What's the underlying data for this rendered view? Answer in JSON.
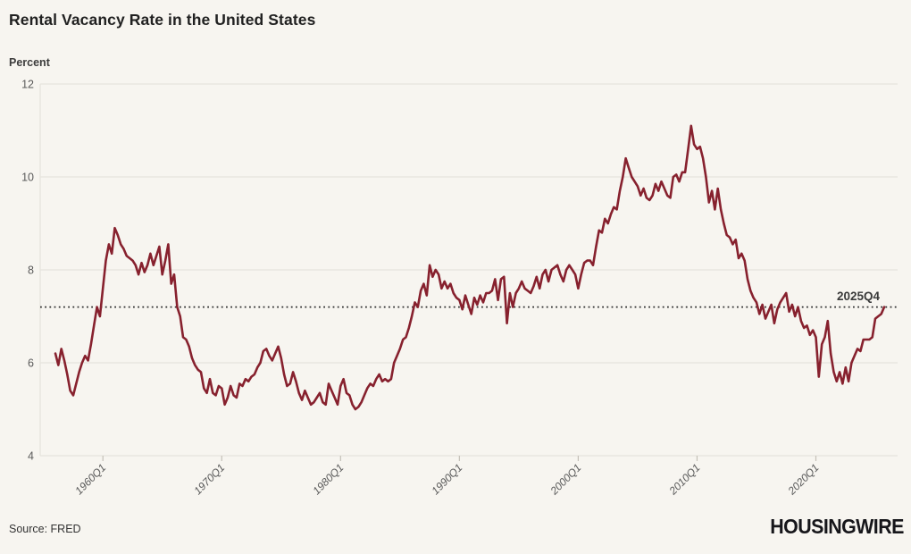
{
  "header": {
    "title": "Rental Vacancy Rate in the United States"
  },
  "footer": {
    "source": "Source: FRED",
    "logo": "HOUSINGWIRE"
  },
  "colors": {
    "background": "#f7f5f0",
    "line": "#87212e",
    "gridline": "#e6e3dc",
    "tick": "#c4c0b8",
    "axis_text": "#5a5a5a",
    "reference_line": "#2e2e2e"
  },
  "chart_data": {
    "type": "line",
    "title": "Rental Vacancy Rate in the United States",
    "xlabel": "",
    "ylabel": "Percent",
    "ylim": [
      4,
      12
    ],
    "yticks": [
      4,
      6,
      8,
      10,
      12
    ],
    "grid": true,
    "frequency": "quarterly",
    "x_start": "1956Q1",
    "x_end": "2025Q4",
    "xticks": [
      {
        "label": "1960Q1",
        "index": 16
      },
      {
        "label": "1970Q1",
        "index": 56
      },
      {
        "label": "1980Q1",
        "index": 96
      },
      {
        "label": "1990Q1",
        "index": 136
      },
      {
        "label": "2000Q1",
        "index": 176
      },
      {
        "label": "2010Q1",
        "index": 216
      },
      {
        "label": "2020Q1",
        "index": 256
      }
    ],
    "reference_line": {
      "value": 7.2,
      "label": "2025Q4"
    },
    "series": [
      {
        "name": "Rental Vacancy Rate (percent)",
        "values": [
          6.2,
          5.95,
          6.3,
          6.05,
          5.75,
          5.4,
          5.3,
          5.55,
          5.8,
          6.0,
          6.15,
          6.05,
          6.4,
          6.8,
          7.2,
          7.0,
          7.6,
          8.2,
          8.55,
          8.35,
          8.9,
          8.75,
          8.55,
          8.45,
          8.3,
          8.25,
          8.2,
          8.1,
          7.9,
          8.15,
          7.95,
          8.1,
          8.35,
          8.1,
          8.3,
          8.5,
          7.9,
          8.2,
          8.55,
          7.7,
          7.9,
          7.2,
          7.0,
          6.55,
          6.5,
          6.35,
          6.1,
          5.95,
          5.85,
          5.8,
          5.45,
          5.35,
          5.65,
          5.35,
          5.3,
          5.5,
          5.45,
          5.1,
          5.25,
          5.5,
          5.3,
          5.25,
          5.55,
          5.5,
          5.65,
          5.6,
          5.7,
          5.75,
          5.9,
          6.0,
          6.25,
          6.3,
          6.15,
          6.05,
          6.2,
          6.35,
          6.1,
          5.75,
          5.5,
          5.55,
          5.8,
          5.6,
          5.35,
          5.2,
          5.4,
          5.25,
          5.1,
          5.15,
          5.25,
          5.35,
          5.15,
          5.1,
          5.55,
          5.4,
          5.25,
          5.1,
          5.5,
          5.65,
          5.35,
          5.3,
          5.1,
          5.0,
          5.05,
          5.15,
          5.3,
          5.45,
          5.55,
          5.5,
          5.65,
          5.75,
          5.6,
          5.65,
          5.6,
          5.65,
          6.0,
          6.15,
          6.3,
          6.5,
          6.55,
          6.75,
          7.0,
          7.3,
          7.2,
          7.55,
          7.7,
          7.45,
          8.1,
          7.85,
          8.0,
          7.9,
          7.6,
          7.75,
          7.6,
          7.7,
          7.5,
          7.4,
          7.35,
          7.15,
          7.45,
          7.25,
          7.05,
          7.4,
          7.25,
          7.45,
          7.3,
          7.5,
          7.5,
          7.55,
          7.8,
          7.35,
          7.8,
          7.85,
          6.85,
          7.5,
          7.2,
          7.5,
          7.6,
          7.75,
          7.6,
          7.55,
          7.5,
          7.65,
          7.85,
          7.6,
          7.9,
          8.0,
          7.75,
          8.0,
          8.05,
          8.1,
          7.9,
          7.75,
          8.0,
          8.1,
          8.0,
          7.9,
          7.6,
          7.9,
          8.15,
          8.2,
          8.2,
          8.1,
          8.5,
          8.85,
          8.8,
          9.1,
          9.0,
          9.2,
          9.35,
          9.3,
          9.7,
          10.0,
          10.4,
          10.2,
          10.0,
          9.9,
          9.8,
          9.6,
          9.75,
          9.55,
          9.5,
          9.6,
          9.85,
          9.7,
          9.9,
          9.75,
          9.6,
          9.55,
          10.0,
          10.05,
          9.9,
          10.1,
          10.1,
          10.6,
          11.1,
          10.7,
          10.6,
          10.65,
          10.4,
          10.0,
          9.45,
          9.7,
          9.3,
          9.75,
          9.3,
          9.0,
          8.75,
          8.7,
          8.55,
          8.65,
          8.25,
          8.35,
          8.2,
          7.8,
          7.55,
          7.4,
          7.3,
          7.05,
          7.25,
          6.95,
          7.1,
          7.25,
          6.85,
          7.15,
          7.3,
          7.4,
          7.5,
          7.1,
          7.25,
          7.0,
          7.2,
          6.9,
          6.75,
          6.8,
          6.6,
          6.7,
          6.55,
          5.7,
          6.4,
          6.55,
          6.9,
          6.2,
          5.8,
          5.6,
          5.8,
          5.55,
          5.9,
          5.6,
          6.0,
          6.15,
          6.3,
          6.25,
          6.5,
          6.5,
          6.5,
          6.55,
          6.95,
          7.0,
          7.05,
          7.2
        ]
      }
    ]
  }
}
